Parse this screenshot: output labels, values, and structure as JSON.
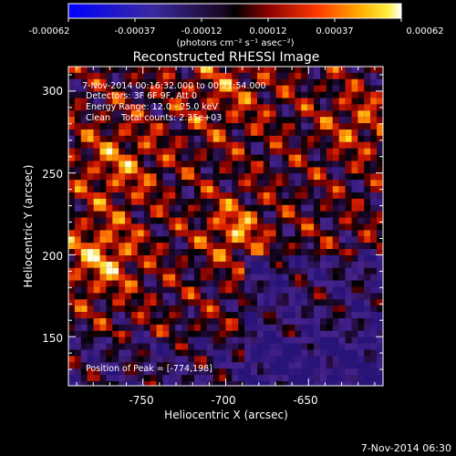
{
  "colorbar": {
    "tick_labels": [
      "-0.00062",
      "-0.00037",
      "-0.00012",
      "0.00012",
      "0.00037",
      "0.00062"
    ],
    "units_label": "(photons cm⁻² s⁻¹ asec⁻²)"
  },
  "title": "Reconstructed RHESSI Image",
  "annotations": {
    "time_range": "7-Nov-2014 00:16:32.000 to 00:21:54.000",
    "detectors": "Detectors: 3F 6F 9F, Att 0",
    "energy_range": "Energy Range: 12.0 - 25.0 keV",
    "clean": "Clean    Total counts: 2.35e+03",
    "peak": "Position of Peak = [-774,198]"
  },
  "axes": {
    "xlabel": "Heliocentric X (arcsec)",
    "ylabel": "Heliocentric Y (arcsec)",
    "x_ticks": [
      "-750",
      "-700",
      "-650"
    ],
    "y_ticks": [
      "150",
      "200",
      "250",
      "300"
    ]
  },
  "footer_timestamp": "7-Nov-2014 06:30",
  "chart_data": {
    "type": "heatmap",
    "title": "Reconstructed RHESSI Image",
    "xlabel": "Heliocentric X (arcsec)",
    "ylabel": "Heliocentric Y (arcsec)",
    "xlim": [
      -795,
      -605
    ],
    "ylim": [
      120,
      315
    ],
    "x_ticks": [
      -750,
      -700,
      -650
    ],
    "y_ticks": [
      150,
      200,
      250,
      300
    ],
    "colorbar_range": [
      -0.00062,
      0.00062
    ],
    "colorbar_ticks": [
      -0.00062,
      -0.00037,
      -0.00012,
      0.00012,
      0.00037,
      0.00062
    ],
    "peak_position": [
      -774,
      198
    ],
    "colormap_colors": [
      "#0000ff",
      "#5a2d8a",
      "#2a0a3a",
      "#000000",
      "#8b0000",
      "#ff3000",
      "#ff9000",
      "#ffe000",
      "#ffffff"
    ]
  }
}
